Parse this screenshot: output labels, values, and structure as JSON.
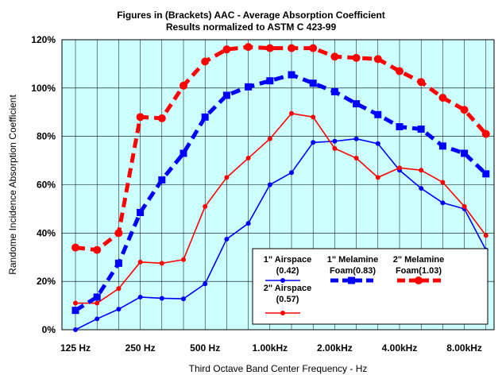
{
  "chart_data": {
    "type": "line",
    "title": "Figures in (Brackets) AAC - Average Absorption Coefficient",
    "subtitle": "Results normalized to ASTM C 423-99",
    "xlabel": "Third Octave Band Center Frequency - Hz",
    "ylabel": "Randome Incidence Absorption Coefficient",
    "x_tick_labels": [
      "125 Hz",
      "250 Hz",
      "500 Hz",
      "1.00kHz",
      "2.00kHz",
      "4.00kHz",
      "8.00kHz"
    ],
    "y_tick_labels": [
      "0%",
      "20%",
      "40%",
      "60%",
      "80%",
      "100%",
      "120%"
    ],
    "ylim": [
      0,
      120
    ],
    "grid": true,
    "background": "#ccffff",
    "x": [
      125,
      160,
      200,
      250,
      315,
      400,
      500,
      630,
      800,
      1000,
      1250,
      1600,
      2000,
      2500,
      3150,
      4000,
      5000,
      6300,
      8000,
      10000
    ],
    "series": [
      {
        "name": "1\" Airspace",
        "aac": "(0.42)",
        "color": "#0000ff",
        "style": "solid",
        "marker": "circle",
        "values": [
          0,
          4.5,
          8.5,
          13.5,
          13,
          12.8,
          19,
          37.5,
          44,
          60,
          65,
          77.5,
          78,
          79,
          77,
          66,
          58.5,
          52.5,
          50,
          33
        ]
      },
      {
        "name": "2\" Airspace",
        "aac": "(0.57)",
        "color": "#ff0000",
        "style": "solid",
        "marker": "circle",
        "values": [
          11,
          11,
          17,
          28,
          27.5,
          29,
          51,
          63,
          71,
          79,
          89.5,
          88,
          75,
          71,
          63,
          67,
          66,
          61,
          51,
          39
        ]
      },
      {
        "name": "1\" Melamine Foam",
        "aac": "(0.83)",
        "color": "#0000ff",
        "style": "dashed",
        "marker": "square",
        "values": [
          8,
          13.5,
          27.5,
          48.5,
          62,
          73,
          88,
          97,
          100.5,
          103,
          105.5,
          102,
          98.5,
          93.5,
          89,
          84,
          83,
          76,
          73,
          64.5
        ]
      },
      {
        "name": "2\" Melamine Foam",
        "aac": "(1.03)",
        "color": "#ff0000",
        "style": "dashed",
        "marker": "circle",
        "values": [
          34,
          33,
          40,
          88,
          87.5,
          101,
          111,
          116,
          117,
          116.5,
          116.5,
          116.5,
          113,
          112.5,
          112,
          107,
          102.5,
          96,
          91,
          81
        ]
      }
    ],
    "legend": {
      "placement": "bottom-right",
      "items": [
        {
          "line1": "1\" Airspace",
          "line2": "(0.42)"
        },
        {
          "line1": "2\" Airspace",
          "line2": "(0.57)"
        },
        {
          "line1": "1\" Melamine",
          "line2": "Foam(0.83)"
        },
        {
          "line1": "2\" Melamine",
          "line2": "Foam(1.03)"
        }
      ]
    }
  }
}
